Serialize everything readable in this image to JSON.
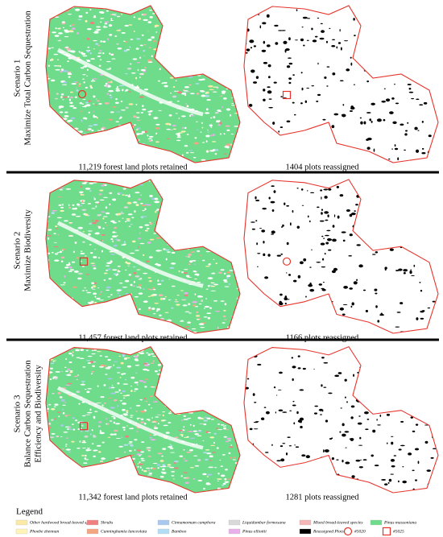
{
  "scenarios": [
    {
      "title": "Scenario 1",
      "subtitle_lines": [
        "Maximize Total Carbon Sequestration"
      ],
      "retained": "11,219 forest land plots retained",
      "reassigned": "1404 plots reassigned"
    },
    {
      "title": "Scenario 2",
      "subtitle_lines": [
        "Maximize Biodiversity"
      ],
      "retained": "11,457 forest land plots retained",
      "reassigned": "1166 plots reassigned"
    },
    {
      "title": "Scenario 3",
      "subtitle_lines": [
        "Balance Carbon Sequestration",
        "Efficiency and Biodiversity"
      ],
      "retained": "11,342 forest land plots retained",
      "reassigned": "1281 plots reassigned"
    }
  ],
  "legend": {
    "title": "Legend",
    "items": [
      {
        "label": "Other hardwood broad-leaved species",
        "color": "#fbe9a6"
      },
      {
        "label": "Shrubs",
        "color": "#f08080"
      },
      {
        "label": "Cinnamomum camphora",
        "color": "#a9c8f0"
      },
      {
        "label": "Liquidambar formosana",
        "color": "#d9d9d9"
      },
      {
        "label": "Mixed broad-leaved species",
        "color": "#f4b6b6"
      },
      {
        "label": "Pinus massoniana",
        "color": "#6fdc8c"
      },
      {
        "label": "Phoebe zhennan",
        "color": "#fff3b8"
      },
      {
        "label": "Cunninghamia lanceolata",
        "color": "#f4a582"
      },
      {
        "label": "Bamboo",
        "color": "#b3dcf5"
      },
      {
        "label": "Pinus elliottii",
        "color": "#e8b0e8"
      },
      {
        "label": "Reassigned Plots",
        "color": "#000000"
      }
    ],
    "markers": [
      {
        "label": "#5020",
        "shape": "circle"
      },
      {
        "label": "#5025",
        "shape": "square"
      }
    ]
  }
}
